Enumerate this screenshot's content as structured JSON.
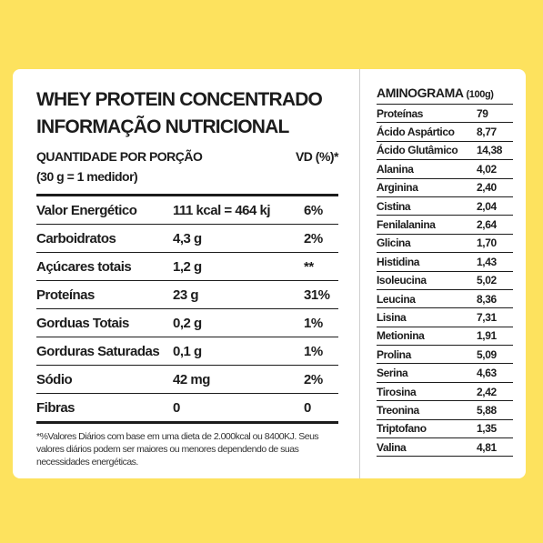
{
  "nutrition": {
    "product_title": "WHEY PROTEIN CONCENTRADO",
    "panel_title": "INFORMAÇÃO NUTRICIONAL",
    "serving_label": "QUANTIDADE POR PORÇÃO",
    "vd_header": "VD (%)*",
    "serving_size": "(30 g = 1 medidor)",
    "rows": [
      {
        "name": "Valor Energético",
        "amount": "111 kcal = 464 kj",
        "vd": "6%"
      },
      {
        "name": "Carboidratos",
        "amount": "4,3 g",
        "vd": "2%"
      },
      {
        "name": "Açúcares totais",
        "amount": "1,2 g",
        "vd": "**"
      },
      {
        "name": "Proteínas",
        "amount": "23 g",
        "vd": "31%"
      },
      {
        "name": "Gorduas Totais",
        "amount": "0,2 g",
        "vd": "1%"
      },
      {
        "name": "Gorduras Saturadas",
        "amount": "0,1 g",
        "vd": "1%"
      },
      {
        "name": "Sódio",
        "amount": "42 mg",
        "vd": "2%"
      },
      {
        "name": "Fibras",
        "amount": "0",
        "vd": "0"
      }
    ],
    "footnote": "*%Valores Diários com base em uma dieta de 2.000kcal ou 8400KJ. Seus valores diários podem ser maiores ou menores dependendo de suas necessidades energéticas."
  },
  "aminogram": {
    "title": "AMINOGRAMA",
    "unit": "(100g)",
    "rows": [
      {
        "name": "Proteínas",
        "value": "79"
      },
      {
        "name": "Ácido Aspártico",
        "value": "8,77"
      },
      {
        "name": "Ácido Glutâmico",
        "value": "14,38"
      },
      {
        "name": "Alanina",
        "value": "4,02"
      },
      {
        "name": "Arginina",
        "value": "2,40"
      },
      {
        "name": "Cistina",
        "value": "2,04"
      },
      {
        "name": "Fenilalanina",
        "value": "2,64"
      },
      {
        "name": "Glicina",
        "value": "1,70"
      },
      {
        "name": "Histidina",
        "value": "1,43"
      },
      {
        "name": "Isoleucina",
        "value": "5,02"
      },
      {
        "name": "Leucina",
        "value": "8,36"
      },
      {
        "name": "Lisina",
        "value": "7,31"
      },
      {
        "name": "Metionina",
        "value": "1,91"
      },
      {
        "name": "Prolina",
        "value": "5,09"
      },
      {
        "name": "Serina",
        "value": "4,63"
      },
      {
        "name": "Tirosina",
        "value": "2,42"
      },
      {
        "name": "Treonina",
        "value": "5,88"
      },
      {
        "name": "Triptofano",
        "value": "1,35"
      },
      {
        "name": "Valina",
        "value": "4,81"
      }
    ]
  },
  "colors": {
    "background": "#fde25e",
    "card": "#ffffff",
    "ink": "#1c1c1c"
  }
}
